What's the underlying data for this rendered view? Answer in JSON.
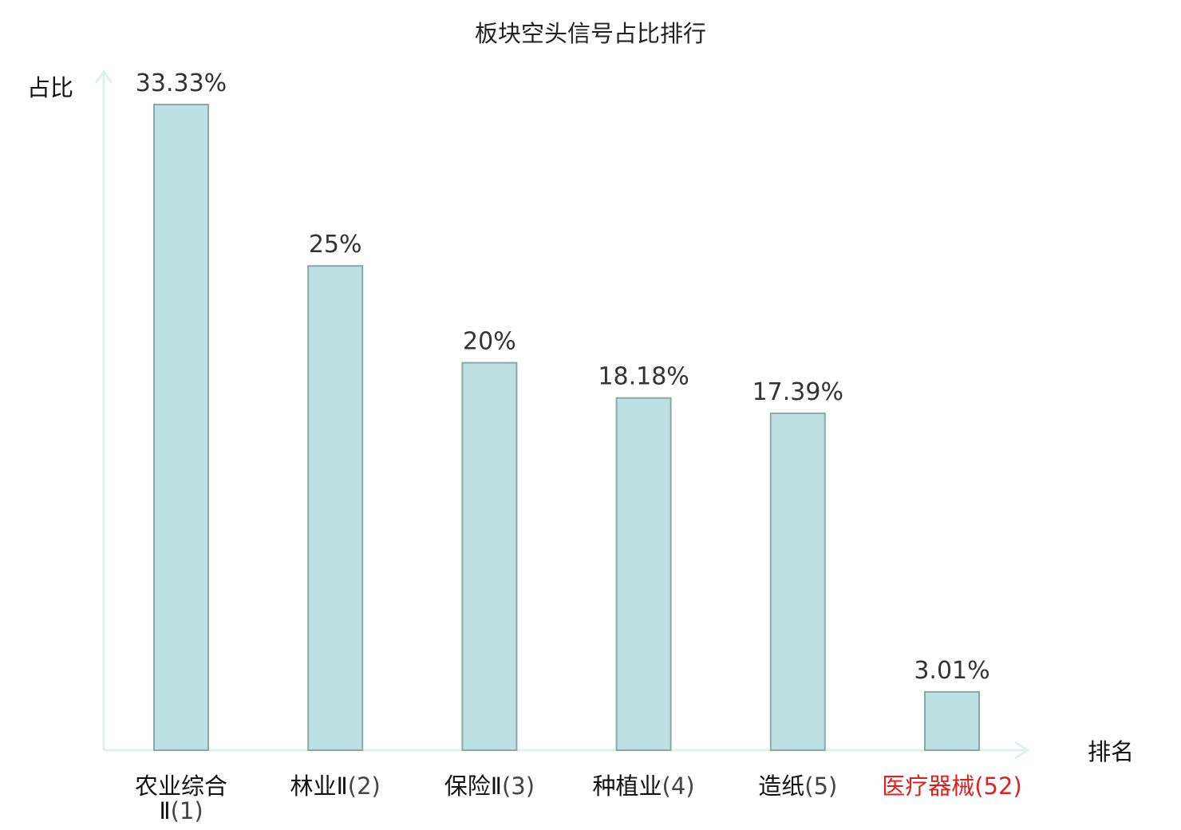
{
  "chart_data": {
    "type": "bar",
    "title": "板块空头信号占比排行",
    "ylabel": "占比",
    "xlabel": "排名",
    "ylim": [
      0,
      35
    ],
    "grid": false,
    "categories": [
      {
        "name": "农业综合Ⅱ",
        "rank": "(1)"
      },
      {
        "name": "林业Ⅱ",
        "rank": "(2)"
      },
      {
        "name": "保险Ⅱ",
        "rank": "(3)"
      },
      {
        "name": "种植业",
        "rank": "(4)"
      },
      {
        "name": "造纸",
        "rank": "(5)"
      },
      {
        "name": "医疗器械",
        "rank": "(52)"
      }
    ],
    "values": [
      33.33,
      25,
      20,
      18.18,
      17.39,
      3.01
    ],
    "value_labels": [
      "33.33%",
      "25%",
      "20%",
      "18.18%",
      "17.39%",
      "3.01%"
    ],
    "highlight_index": 5,
    "colors": {
      "bar_fill": "#bde0e3",
      "bar_stroke": "#8aa8a8",
      "axis": "#dff1ef",
      "highlight": "#e0201e"
    }
  }
}
